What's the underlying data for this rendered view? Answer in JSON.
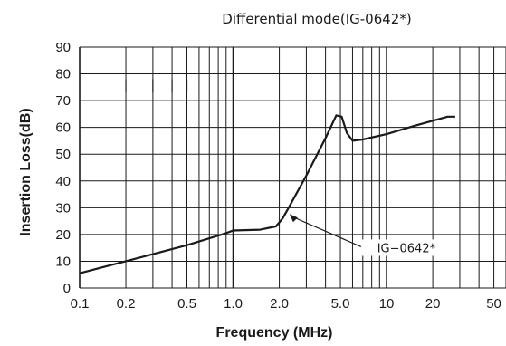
{
  "chart_data": {
    "type": "line",
    "title": "Differential mode(IG-0642*)",
    "xlabel": "Frequency (MHz)",
    "ylabel": "Insertion Loss(dB)",
    "x_scale": "log",
    "xlim": [
      0.1,
      60
    ],
    "ylim": [
      0,
      90
    ],
    "x_ticks": [
      0.1,
      0.2,
      0.5,
      1.0,
      2.0,
      5.0,
      10,
      20,
      50
    ],
    "x_tick_labels": [
      "0.1",
      "0.2",
      "0.5",
      "1.0",
      "2.0",
      "5.0",
      "10",
      "20",
      "50"
    ],
    "y_ticks": [
      0,
      10,
      20,
      30,
      40,
      50,
      60,
      70,
      80,
      90
    ],
    "y_tick_labels": [
      "0",
      "10",
      "20",
      "30",
      "40",
      "50",
      "60",
      "70",
      "80",
      "90"
    ],
    "grid": true,
    "series": [
      {
        "name": "IG−0642*",
        "color": "#1a1a1a",
        "x": [
          0.1,
          0.2,
          0.5,
          0.9,
          1.0,
          1.5,
          1.9,
          2.1,
          2.3,
          3.0,
          4.0,
          4.7,
          5.1,
          5.5,
          6.0,
          7.0,
          10,
          15,
          20,
          25,
          28
        ],
        "y": [
          5.5,
          10,
          16,
          20.5,
          21.5,
          21.8,
          23,
          26,
          30,
          42,
          56,
          64.5,
          64,
          58,
          55,
          55.5,
          57.5,
          60.5,
          62.5,
          64,
          64
        ]
      }
    ],
    "annotations": [
      {
        "text": "IG−0642*",
        "target_x": 2.3,
        "target_y": 28,
        "label_x": 15,
        "label_y": 10
      }
    ]
  }
}
